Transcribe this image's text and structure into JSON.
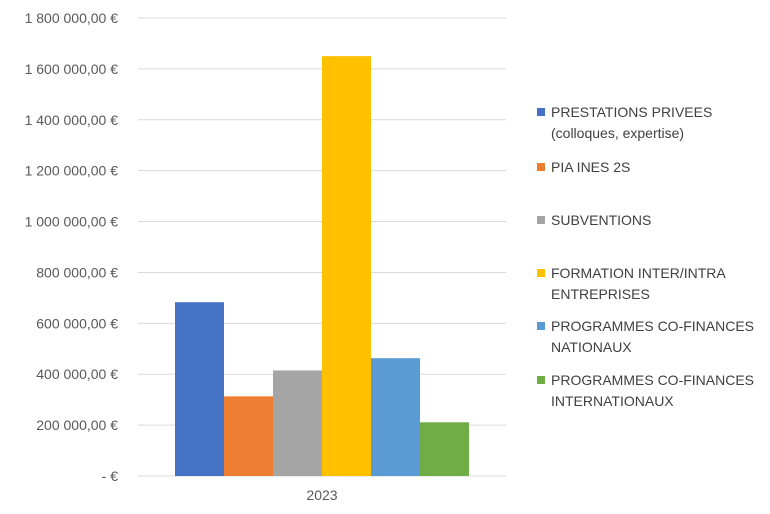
{
  "chart_data": {
    "type": "bar",
    "categories": [
      "2023"
    ],
    "series": [
      {
        "name": "PRESTATIONS PRIVEES\n(colloques, expertise)",
        "values": [
          683000
        ],
        "color": "#4472c4"
      },
      {
        "name": "PIA INES 2S",
        "values": [
          313000
        ],
        "color": "#ed7d31"
      },
      {
        "name": "SUBVENTIONS",
        "values": [
          415000
        ],
        "color": "#a5a5a5"
      },
      {
        "name": "FORMATION INTER/INTRA\nENTREPRISES",
        "values": [
          1650000
        ],
        "color": "#ffc000"
      },
      {
        "name": "PROGRAMMES CO-FINANCES\nNATIONAUX",
        "values": [
          463000
        ],
        "color": "#5b9bd5"
      },
      {
        "name": "PROGRAMMES CO-FINANCES\nINTERNATIONAUX",
        "values": [
          211000
        ],
        "color": "#70ad47"
      }
    ],
    "ylim": [
      0,
      1800000
    ],
    "yticks": [
      0,
      200000,
      400000,
      600000,
      800000,
      1000000,
      1200000,
      1400000,
      1600000,
      1800000
    ],
    "ytick_labels": [
      "-  €",
      "200 000,00 €",
      "400 000,00 €",
      "600 000,00 €",
      "800 000,00 €",
      "1 000 000,00 €",
      "1 200 000,00 €",
      "1 400 000,00 €",
      "1 600 000,00 €",
      "1 800 000,00 €"
    ],
    "grid": true,
    "legend_position": "right",
    "title": "",
    "xlabel": "",
    "ylabel": ""
  }
}
